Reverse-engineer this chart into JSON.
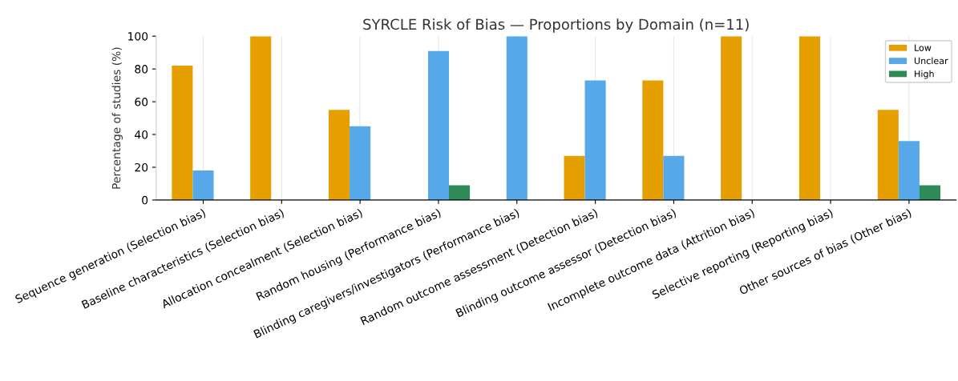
{
  "chart_data": {
    "type": "bar",
    "title": "SYRCLE Risk of Bias — Proportions by Domain (n=11)",
    "ylabel": "Percentage of studies (%)",
    "categories": [
      "Sequence generation (Selection bias)",
      "Baseline characteristics (Selection bias)",
      "Allocation concealment (Selection bias)",
      "Random housing (Performance bias)",
      "Blinding caregivers/investigators (Performance bias)",
      "Random outcome assessment (Detection bias)",
      "Blinding outcome assessor (Detection bias)",
      "Incomplete outcome data (Attrition bias)",
      "Selective reporting (Reporting bias)",
      "Other sources of bias (Other bias)"
    ],
    "series": [
      {
        "name": "Low",
        "color": "#e69f00",
        "values": [
          82,
          100,
          55,
          0,
          0,
          27,
          73,
          100,
          100,
          55
        ]
      },
      {
        "name": "Unclear",
        "color": "#56a8e9",
        "values": [
          18,
          0,
          45,
          91,
          100,
          73,
          27,
          0,
          0,
          36
        ]
      },
      {
        "name": "High",
        "color": "#2e8b57",
        "values": [
          0,
          0,
          0,
          9,
          0,
          0,
          0,
          0,
          0,
          9
        ]
      }
    ],
    "ylim": [
      0,
      100
    ],
    "yticks": [
      0,
      20,
      40,
      60,
      80,
      100
    ],
    "grid": "x",
    "legend": "top right"
  }
}
